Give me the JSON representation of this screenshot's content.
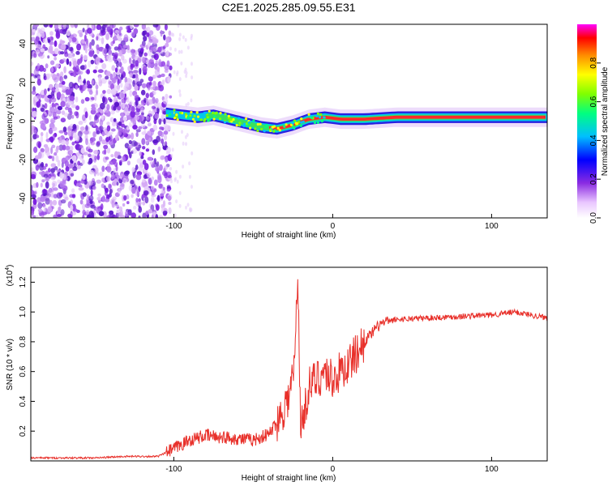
{
  "title": "C2E1.2025.285.09.55.E31",
  "chart_data": [
    {
      "type": "heatmap",
      "name": "spectrogram",
      "xlabel": "Height of straight line (km)",
      "ylabel": "Frequency (Hz)",
      "xlim": [
        -190,
        135
      ],
      "ylim": [
        -50,
        50
      ],
      "x_ticks": [
        -100,
        0,
        100
      ],
      "y_ticks": [
        -40,
        -20,
        0,
        20,
        40
      ],
      "colorbar": {
        "label": "Normalized spectral amplitude",
        "range": [
          0,
          1
        ],
        "ticks": [
          "0.0",
          "0.2",
          "0.4",
          "0.6",
          "0.8"
        ],
        "colors": [
          "#ffffff",
          "#e9c6ff",
          "#8a2be2",
          "#0000ff",
          "#00bfff",
          "#00ff80",
          "#80ff00",
          "#ffff00",
          "#ff8c00",
          "#ff0000",
          "#ff00ff"
        ]
      },
      "noise_region_x": [
        -190,
        -102
      ],
      "ridge": [
        {
          "x": -105,
          "f": 4
        },
        {
          "x": -95,
          "f": 3
        },
        {
          "x": -85,
          "f": 2
        },
        {
          "x": -75,
          "f": 3
        },
        {
          "x": -65,
          "f": 1
        },
        {
          "x": -55,
          "f": -1
        },
        {
          "x": -45,
          "f": -3
        },
        {
          "x": -35,
          "f": -4
        },
        {
          "x": -25,
          "f": -2
        },
        {
          "x": -15,
          "f": 1
        },
        {
          "x": -5,
          "f": 2
        },
        {
          "x": 5,
          "f": 1
        },
        {
          "x": 20,
          "f": 1
        },
        {
          "x": 40,
          "f": 2
        },
        {
          "x": 60,
          "f": 2
        },
        {
          "x": 80,
          "f": 2
        },
        {
          "x": 100,
          "f": 2
        },
        {
          "x": 120,
          "f": 2
        },
        {
          "x": 135,
          "f": 2
        }
      ]
    },
    {
      "type": "line",
      "name": "snr",
      "xlabel": "Height of straight line (km)",
      "ylabel": "SNR (10 * v/v)",
      "y_multiplier": "(x10",
      "y_multiplier_exp": "4",
      "y_multiplier_close": ")",
      "xlim": [
        -190,
        135
      ],
      "ylim": [
        0,
        1.3
      ],
      "x_ticks": [
        -100,
        0,
        100
      ],
      "y_ticks": [
        "0.2",
        "0.4",
        "0.6",
        "0.8",
        "1.0",
        "1.2"
      ],
      "line_color": "#e8302a",
      "series": [
        {
          "x": -190,
          "y": 0.02
        },
        {
          "x": -150,
          "y": 0.02
        },
        {
          "x": -130,
          "y": 0.03
        },
        {
          "x": -110,
          "y": 0.03
        },
        {
          "x": -100,
          "y": 0.08
        },
        {
          "x": -90,
          "y": 0.14
        },
        {
          "x": -80,
          "y": 0.17
        },
        {
          "x": -70,
          "y": 0.16
        },
        {
          "x": -60,
          "y": 0.15
        },
        {
          "x": -50,
          "y": 0.14
        },
        {
          "x": -40,
          "y": 0.18
        },
        {
          "x": -33,
          "y": 0.3
        },
        {
          "x": -27,
          "y": 0.45
        },
        {
          "x": -24,
          "y": 0.65
        },
        {
          "x": -22,
          "y": 1.25
        },
        {
          "x": -20,
          "y": 0.2
        },
        {
          "x": -15,
          "y": 0.5
        },
        {
          "x": -5,
          "y": 0.6
        },
        {
          "x": 0,
          "y": 0.55
        },
        {
          "x": 10,
          "y": 0.65
        },
        {
          "x": 20,
          "y": 0.8
        },
        {
          "x": 30,
          "y": 0.92
        },
        {
          "x": 40,
          "y": 0.95
        },
        {
          "x": 60,
          "y": 0.96
        },
        {
          "x": 80,
          "y": 0.97
        },
        {
          "x": 100,
          "y": 0.98
        },
        {
          "x": 115,
          "y": 1.0
        },
        {
          "x": 135,
          "y": 0.96
        }
      ]
    }
  ]
}
